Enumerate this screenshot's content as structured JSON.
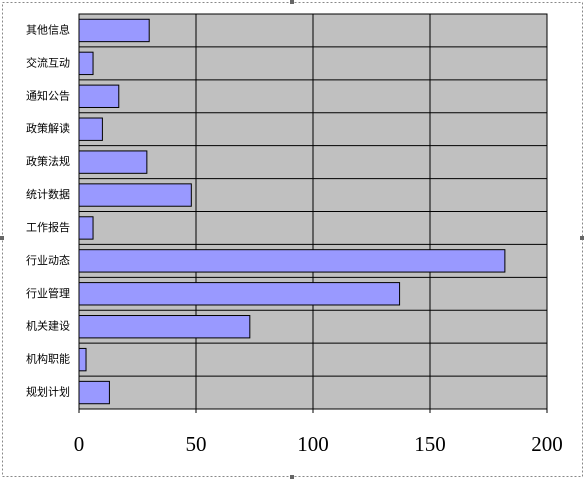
{
  "chart_data": {
    "type": "bar",
    "orientation": "horizontal",
    "categories": [
      "其他信息",
      "交流互动",
      "通知公告",
      "政策解读",
      "政策法规",
      "统计数据",
      "工作报告",
      "行业动态",
      "行业管理",
      "机关建设",
      "机构职能",
      "规划计划"
    ],
    "values": [
      30,
      6,
      17,
      10,
      29,
      48,
      6,
      182,
      137,
      73,
      3,
      13
    ],
    "color": "#9999ff",
    "xlim": [
      0,
      200
    ],
    "xticks": [
      0,
      50,
      100,
      150,
      200
    ],
    "grid": true
  }
}
